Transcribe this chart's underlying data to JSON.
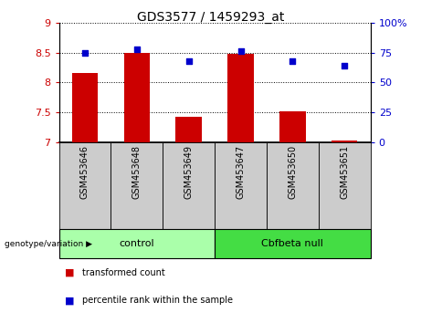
{
  "title": "GDS3577 / 1459293_at",
  "categories": [
    "GSM453646",
    "GSM453648",
    "GSM453649",
    "GSM453647",
    "GSM453650",
    "GSM453651"
  ],
  "bar_values": [
    8.15,
    8.5,
    7.42,
    8.47,
    7.52,
    7.03
  ],
  "dot_values": [
    75,
    78,
    68,
    76,
    68,
    64
  ],
  "bar_color": "#cc0000",
  "dot_color": "#0000cc",
  "bar_bottom": 7.0,
  "ylim_left": [
    7.0,
    9.0
  ],
  "ylim_right": [
    0,
    100
  ],
  "yticks_left": [
    7.0,
    7.5,
    8.0,
    8.5,
    9.0
  ],
  "yticks_right": [
    0,
    25,
    50,
    75,
    100
  ],
  "ytick_labels_left": [
    "7",
    "7.5",
    "8",
    "8.5",
    "9"
  ],
  "ytick_labels_right": [
    "0",
    "25",
    "50",
    "75",
    "100%"
  ],
  "groups": [
    {
      "label": "control",
      "indices": [
        0,
        1,
        2
      ],
      "color": "#aaffaa"
    },
    {
      "label": "Cbfbeta null",
      "indices": [
        3,
        4,
        5
      ],
      "color": "#44dd44"
    }
  ],
  "group_label_prefix": "genotype/variation",
  "legend_items": [
    {
      "label": "transformed count",
      "color": "#cc0000"
    },
    {
      "label": "percentile rank within the sample",
      "color": "#0000cc"
    }
  ],
  "background_xtick": "#cccccc",
  "tick_label_color_left": "#cc0000",
  "tick_label_color_right": "#0000cc",
  "fig_width": 4.61,
  "fig_height": 3.54,
  "dpi": 100
}
